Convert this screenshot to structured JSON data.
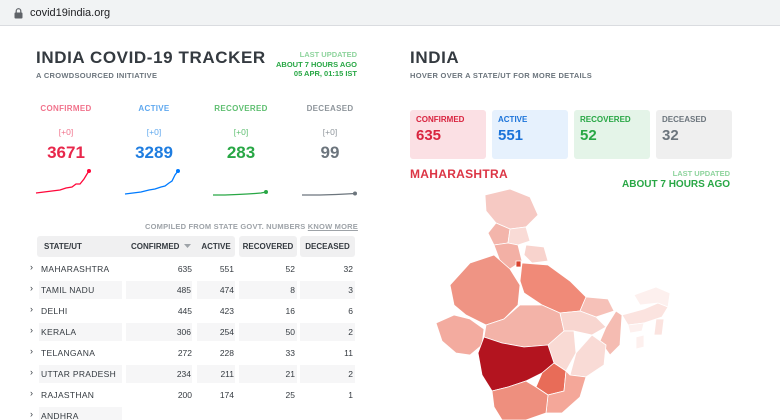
{
  "browser": {
    "url": "covid19india.org"
  },
  "header": {
    "title": "INDIA COVID-19 TRACKER",
    "subtitle": "A CROWDSOURCED INITIATIVE",
    "last_updated_label": "LAST UPDATED",
    "last_updated_ago": "ABOUT 7 HOURS AGO",
    "last_updated_time": "05 APR, 01:15 IST"
  },
  "stats": [
    {
      "label": "CONFIRMED",
      "delta": "[+0]",
      "value": "3671",
      "color": "#ff073a",
      "light": "#f1738c"
    },
    {
      "label": "ACTIVE",
      "delta": "[+0]",
      "value": "3289",
      "color": "#007bff",
      "light": "#5fa8ef"
    },
    {
      "label": "RECOVERED",
      "delta": "[+0]",
      "value": "283",
      "color": "#28a745",
      "light": "#5fbf71"
    },
    {
      "label": "DECEASED",
      "delta": "[+0]",
      "value": "99",
      "color": "#6c757d",
      "light": "#8f969c"
    }
  ],
  "compiled": {
    "text": "COMPILED FROM STATE GOVT. NUMBERS",
    "link": "KNOW MORE"
  },
  "table": {
    "headers": [
      "STATE/UT",
      "CONFIRMED",
      "ACTIVE",
      "RECOVERED",
      "DECEASED"
    ],
    "rows": [
      {
        "state": "MAHARASHTRA",
        "confirmed": "635",
        "active": "551",
        "recovered": "52",
        "deceased": "32"
      },
      {
        "state": "TAMIL NADU",
        "confirmed": "485",
        "active": "474",
        "recovered": "8",
        "deceased": "3"
      },
      {
        "state": "DELHI",
        "confirmed": "445",
        "active": "423",
        "recovered": "16",
        "deceased": "6"
      },
      {
        "state": "KERALA",
        "confirmed": "306",
        "active": "254",
        "recovered": "50",
        "deceased": "2"
      },
      {
        "state": "TELANGANA",
        "confirmed": "272",
        "active": "228",
        "recovered": "33",
        "deceased": "11"
      },
      {
        "state": "UTTAR PRADESH",
        "confirmed": "234",
        "active": "211",
        "recovered": "21",
        "deceased": "2"
      },
      {
        "state": "RAJASTHAN",
        "confirmed": "200",
        "active": "174",
        "recovered": "25",
        "deceased": "1"
      },
      {
        "state": "ANDHRA",
        "confirmed": "",
        "active": "",
        "recovered": "",
        "deceased": ""
      }
    ]
  },
  "map_panel": {
    "title": "INDIA",
    "subtitle": "HOVER OVER A STATE/UT FOR MORE DETAILS",
    "cards": [
      {
        "label": "CONFIRMED",
        "value": "635",
        "bg": "#fbe0e4",
        "fg": "#d9243f"
      },
      {
        "label": "ACTIVE",
        "value": "551",
        "bg": "#e6f1fd",
        "fg": "#1a73d9"
      },
      {
        "label": "RECOVERED",
        "value": "52",
        "bg": "#e4f4e8",
        "fg": "#28a745"
      },
      {
        "label": "DECEASED",
        "value": "32",
        "bg": "#efefef",
        "fg": "#6c757d"
      }
    ],
    "selected_state": "MAHARASHTRA",
    "last_updated_label": "LAST UPDATED",
    "last_updated_ago": "ABOUT 7 HOURS AGO"
  }
}
